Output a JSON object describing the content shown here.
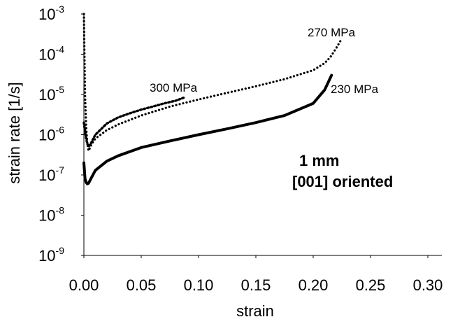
{
  "chart_data": {
    "type": "line",
    "xlabel": "strain",
    "ylabel": "strain rate [1/s]",
    "xlim": [
      0,
      0.3
    ],
    "ylim": [
      1e-09,
      0.001
    ],
    "yscale": "log",
    "grid": false,
    "x_ticks": [
      "0.00",
      "0.05",
      "0.10",
      "0.15",
      "0.20",
      "0.25",
      "0.30"
    ],
    "y_ticks": [
      {
        "base": "10",
        "exp": "-9"
      },
      {
        "base": "10",
        "exp": "-8"
      },
      {
        "base": "10",
        "exp": "-7"
      },
      {
        "base": "10",
        "exp": "-6"
      },
      {
        "base": "10",
        "exp": "-5"
      },
      {
        "base": "10",
        "exp": "-4"
      },
      {
        "base": "10",
        "exp": "-3"
      }
    ],
    "annotation": [
      "1 mm",
      "[001] oriented"
    ],
    "series": [
      {
        "name": "300 MPa",
        "style": "dashed",
        "x": [
          0.0,
          0.001,
          0.002,
          0.003,
          0.004,
          0.006,
          0.01,
          0.02,
          0.03,
          0.04,
          0.05,
          0.06,
          0.07,
          0.08,
          0.088
        ],
        "y": [
          2e-06,
          1.2e-06,
          8e-07,
          6e-07,
          5e-07,
          6e-07,
          1e-06,
          1.9e-06,
          2.7e-06,
          3.4e-06,
          4.2e-06,
          5e-06,
          6e-06,
          7e-06,
          8.5e-06
        ]
      },
      {
        "name": "270 MPa",
        "style": "dotted",
        "x": [
          0.0,
          0.0005,
          0.001,
          0.002,
          0.003,
          0.004,
          0.005,
          0.007,
          0.01,
          0.02,
          0.03,
          0.05,
          0.075,
          0.1,
          0.125,
          0.15,
          0.175,
          0.2,
          0.21,
          0.215,
          0.22,
          0.224
        ],
        "y": [
          0.001,
          0.0001,
          1e-05,
          1.5e-06,
          6e-07,
          4e-07,
          4.5e-07,
          6e-07,
          8e-07,
          1.3e-06,
          1.8e-06,
          3e-06,
          5e-06,
          7.5e-06,
          1.1e-05,
          1.6e-05,
          2.4e-05,
          4e-05,
          6e-05,
          8.5e-05,
          0.00014,
          0.00022
        ]
      },
      {
        "name": "230 MPa",
        "style": "solid",
        "x": [
          0.0,
          0.001,
          0.002,
          0.003,
          0.004,
          0.005,
          0.007,
          0.01,
          0.02,
          0.03,
          0.05,
          0.075,
          0.1,
          0.125,
          0.15,
          0.175,
          0.2,
          0.21,
          0.216
        ],
        "y": [
          2e-07,
          8e-08,
          6.5e-08,
          6e-08,
          6.2e-08,
          7e-08,
          9e-08,
          1.3e-07,
          2.2e-07,
          3e-07,
          4.8e-07,
          7e-07,
          1e-06,
          1.4e-06,
          2e-06,
          3e-06,
          6e-06,
          1.3e-05,
          3e-05
        ]
      }
    ]
  }
}
